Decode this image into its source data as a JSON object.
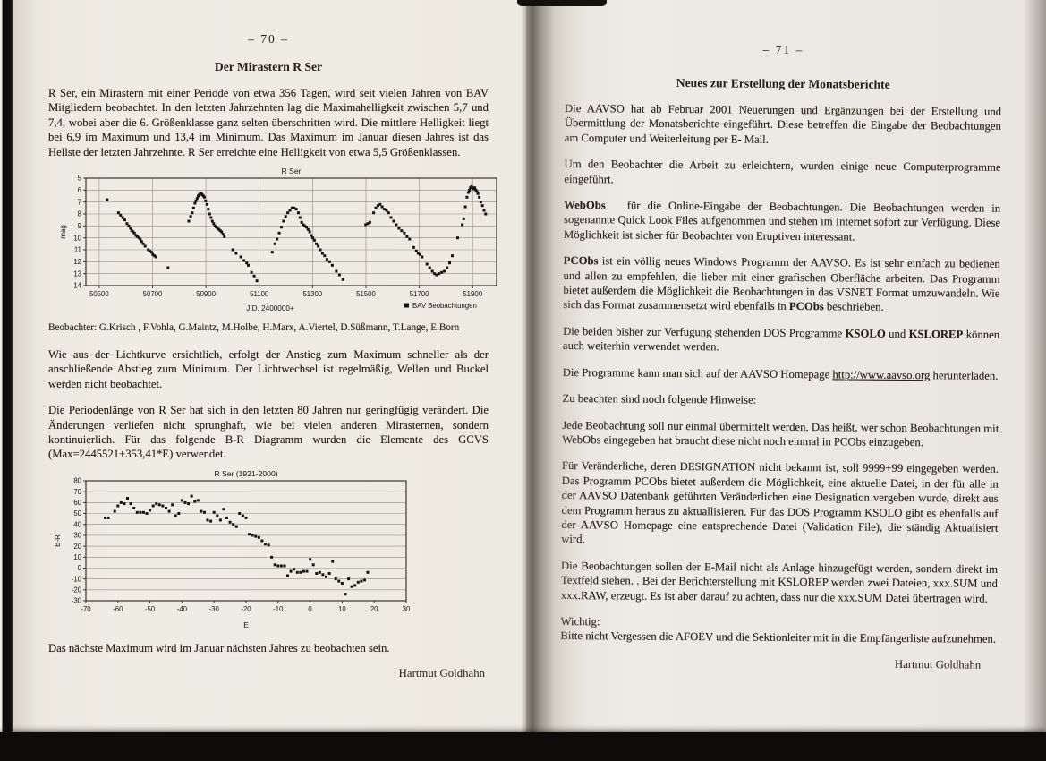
{
  "document": {
    "kind": "scanned book spread, German variable-star newsletter pages",
    "language": "de"
  },
  "page70": {
    "page_number": "–  70  –",
    "title": "Der Mirastern R Ser",
    "intro": "R Ser, ein Mirastern mit einer Periode von etwa 356 Tagen, wird seit vielen Jahren von BAV Mitgliedern beobachtet. In den letzten Jahrzehnten lag die Maximahelligkeit zwischen 5,7 und 7,4, wobei aber die 6. Größenklasse ganz selten überschritten wird. Die mittlere Helligkeit liegt bei 6,9 im Maximum und 13,4 im Minimum. Das Maximum im Januar diesen Jahres ist das Hellste der letzten Jahrzehnte. R Ser erreichte eine Helligkeit von etwa 5,5 Größenklassen.",
    "observers": "Beobachter: G.Krisch , F.Vohla, G.Maintz, M.Holbe, H.Marx, A.Viertel, D.Süßmann, T.Lange, E.Born",
    "para_lightcurve": "Wie aus der Lichtkurve ersichtlich, erfolgt der Anstieg zum Maximum schneller als der anschließende Abstieg zum Minimum. Der Lichtwechsel ist regelmäßig, Wellen und Buckel werden nicht beobachtet.",
    "para_period": "Die Periodenlänge von R Ser hat sich in den letzten 80 Jahren nur geringfügig verändert. Die Änderungen verliefen nicht sprunghaft, wie bei vielen anderen Mirasternen, sondern kontinuierlich. Für das folgende B-R Diagramm wurden die Elemente des GCVS (Max=2445521+353,41*E) verwendet.",
    "para_next_max": "Das nächste Maximum wird im Januar nächsten Jahres zu beobachten sein.",
    "signature": "Hartmut Goldhahn"
  },
  "page71": {
    "page_number": "–  71  –",
    "title": "Neues zur Erstellung der Monatsberichte",
    "paragraphs": [
      {
        "segments": [
          {
            "t": "Die AAVSO hat ab Februar 2001 Neuerungen und Ergänzungen bei der Erstellung und Übermittlung der Monatsberichte eingeführt. Diese betreffen die Eingabe der Beobachtungen am Computer und Weiterleitung per E- Mail."
          }
        ]
      },
      {
        "segments": [
          {
            "t": "Um den Beobachter die Arbeit zu erleichtern, wurden einige neue Computerprogramme eingeführt."
          }
        ]
      },
      {
        "segments": [
          {
            "t": "WebObs",
            "b": true
          },
          {
            "t": "   für die Online-Eingabe der Beobachtungen. Die Beobachtungen werden in sogenannte Quick Look Files aufgenommen und stehen im Internet sofort zur Verfügung. Diese Möglichkeit ist sicher für Beobachter von Eruptiven interessant."
          }
        ]
      },
      {
        "segments": [
          {
            "t": "PCObs",
            "b": true
          },
          {
            "t": " ist ein völlig neues Windows Programm der AAVSO. Es ist sehr einfach zu bedienen und allen zu empfehlen, die lieber mit einer grafischen Oberfläche arbeiten. Das Programm bietet außerdem die Möglichkeit die Beobachtungen in das VSNET Format umzuwandeln. Wie sich das Format zusammensetzt wird ebenfalls in "
          },
          {
            "t": "PCObs",
            "b": true
          },
          {
            "t": " beschrieben."
          }
        ]
      },
      {
        "segments": [
          {
            "t": "Die beiden bisher zur Verfügung stehenden DOS Programme "
          },
          {
            "t": "KSOLO",
            "b": true
          },
          {
            "t": " und "
          },
          {
            "t": "KSLOREP",
            "b": true
          },
          {
            "t": " können auch weiterhin verwendet werden."
          }
        ]
      },
      {
        "segments": [
          {
            "t": "Die Programme kann man sich auf der AAVSO Homepage "
          },
          {
            "t": "http://www.aavso.org",
            "u": true
          },
          {
            "t": " herunterladen."
          }
        ]
      },
      {
        "segments": [
          {
            "t": "Zu beachten sind noch folgende Hinweise:"
          }
        ]
      },
      {
        "segments": [
          {
            "t": "Jede Beobachtung soll nur einmal übermittelt werden. Das heißt, wer schon Beobachtungen mit WebObs eingegeben hat braucht diese nicht noch einmal in PCObs einzugeben."
          }
        ]
      },
      {
        "segments": [
          {
            "t": "Für Veränderliche, deren DESIGNATION nicht bekannt ist, soll 9999+99 eingegeben werden. Das Programm PCObs bietet außerdem die Möglichkeit, eine aktuelle Datei, in der für alle in der AAVSO Datenbank geführten Veränderlichen eine Designation vergeben wurde, direkt aus dem Programm heraus zu aktuallisieren. Für das DOS Programm KSOLO gibt es ebenfalls auf der AAVSO Homepage eine entsprechende Datei (Validation File), die ständig Aktualisiert wird."
          }
        ]
      },
      {
        "segments": [
          {
            "t": "Die Beobachtungen sollen der E-Mail nicht als Anlage hinzugefügt werden, sondern direkt im Textfeld stehen. . Bei der Berichterstellung mit KSLOREP werden zwei Dateien,  xxx.SUM und  xxx.RAW, erzeugt. Es ist aber darauf zu achten, dass nur die  xxx.SUM Datei übertragen wird."
          }
        ]
      },
      {
        "segments": [
          {
            "t": "Wichtig:"
          },
          {
            "br": true
          },
          {
            "t": "Bitte nicht Vergessen die AFOEV und die Sektionleiter mit in die Empfängerliste aufzunehmen."
          }
        ]
      }
    ],
    "signature": "Hartmut Goldhahn"
  },
  "chart_data": [
    {
      "type": "scatter",
      "title": "R Ser",
      "xlabel": "J.D. 2400000+",
      "ylabel": "mag",
      "legend": [
        "BAV Beobachtungen"
      ],
      "legend_position": "bottom-right",
      "xlim": [
        50450,
        51990
      ],
      "ylim": [
        5,
        14
      ],
      "y_inverted": true,
      "xticks": [
        50500,
        50700,
        50900,
        51100,
        51300,
        51500,
        51700,
        51900
      ],
      "yticks": [
        5,
        6,
        7,
        8,
        9,
        10,
        11,
        12,
        13,
        14
      ],
      "grid": {
        "vertical": true,
        "horizontal": true
      },
      "points": [
        [
          50530,
          6.8
        ],
        [
          50572,
          7.9
        ],
        [
          50580,
          8.1
        ],
        [
          50588,
          8.3
        ],
        [
          50596,
          8.5
        ],
        [
          50604,
          8.8
        ],
        [
          50611,
          9.0
        ],
        [
          50617,
          9.2
        ],
        [
          50622,
          9.4
        ],
        [
          50627,
          9.5
        ],
        [
          50632,
          9.6
        ],
        [
          50638,
          9.8
        ],
        [
          50643,
          9.9
        ],
        [
          50649,
          10.0
        ],
        [
          50654,
          10.1
        ],
        [
          50659,
          10.3
        ],
        [
          50665,
          10.5
        ],
        [
          50672,
          10.7
        ],
        [
          50684,
          11.0
        ],
        [
          50690,
          11.1
        ],
        [
          50696,
          11.2
        ],
        [
          50701,
          11.4
        ],
        [
          50707,
          11.5
        ],
        [
          50713,
          11.6
        ],
        [
          50758,
          12.5
        ],
        [
          50836,
          8.6
        ],
        [
          50843,
          8.2
        ],
        [
          50849,
          7.9
        ],
        [
          50854,
          7.5
        ],
        [
          50859,
          7.1
        ],
        [
          50863,
          6.9
        ],
        [
          50867,
          6.7
        ],
        [
          50871,
          6.5
        ],
        [
          50875,
          6.4
        ],
        [
          50879,
          6.3
        ],
        [
          50883,
          6.3
        ],
        [
          50887,
          6.4
        ],
        [
          50891,
          6.5
        ],
        [
          50895,
          6.6
        ],
        [
          50899,
          6.9
        ],
        [
          50904,
          7.2
        ],
        [
          50909,
          7.6
        ],
        [
          50914,
          8.0
        ],
        [
          50919,
          8.3
        ],
        [
          50924,
          8.6
        ],
        [
          50929,
          8.8
        ],
        [
          50934,
          9.0
        ],
        [
          50939,
          9.1
        ],
        [
          50944,
          9.2
        ],
        [
          50949,
          9.3
        ],
        [
          50954,
          9.4
        ],
        [
          50959,
          9.5
        ],
        [
          50964,
          9.7
        ],
        [
          50969,
          9.9
        ],
        [
          51001,
          11.0
        ],
        [
          51013,
          11.3
        ],
        [
          51031,
          11.6
        ],
        [
          51043,
          11.9
        ],
        [
          51053,
          12.1
        ],
        [
          51059,
          12.3
        ],
        [
          51071,
          12.9
        ],
        [
          51081,
          13.2
        ],
        [
          51091,
          13.6
        ],
        [
          51149,
          11.2
        ],
        [
          51159,
          10.5
        ],
        [
          51167,
          10.1
        ],
        [
          51175,
          9.6
        ],
        [
          51183,
          9.1
        ],
        [
          51191,
          8.6
        ],
        [
          51199,
          8.2
        ],
        [
          51207,
          7.9
        ],
        [
          51215,
          7.7
        ],
        [
          51223,
          7.5
        ],
        [
          51231,
          7.5
        ],
        [
          51239,
          7.6
        ],
        [
          51247,
          7.9
        ],
        [
          51253,
          8.3
        ],
        [
          51259,
          8.7
        ],
        [
          51265,
          8.9
        ],
        [
          51271,
          9.0
        ],
        [
          51277,
          9.1
        ],
        [
          51283,
          9.3
        ],
        [
          51289,
          9.5
        ],
        [
          51295,
          9.8
        ],
        [
          51301,
          10.0
        ],
        [
          51307,
          10.2
        ],
        [
          51314,
          10.5
        ],
        [
          51321,
          10.7
        ],
        [
          51329,
          11.0
        ],
        [
          51337,
          11.3
        ],
        [
          51345,
          11.5
        ],
        [
          51354,
          11.8
        ],
        [
          51364,
          12.0
        ],
        [
          51374,
          12.3
        ],
        [
          51389,
          12.8
        ],
        [
          51401,
          13.1
        ],
        [
          51414,
          13.5
        ],
        [
          51499,
          8.9
        ],
        [
          51507,
          8.8
        ],
        [
          51515,
          8.7
        ],
        [
          51529,
          7.9
        ],
        [
          51537,
          7.5
        ],
        [
          51545,
          7.3
        ],
        [
          51553,
          7.2
        ],
        [
          51561,
          7.4
        ],
        [
          51569,
          7.6
        ],
        [
          51577,
          7.7
        ],
        [
          51585,
          7.9
        ],
        [
          51594,
          8.3
        ],
        [
          51604,
          8.6
        ],
        [
          51614,
          8.9
        ],
        [
          51624,
          9.2
        ],
        [
          51634,
          9.4
        ],
        [
          51644,
          9.6
        ],
        [
          51654,
          9.9
        ],
        [
          51664,
          10.1
        ],
        [
          51679,
          10.8
        ],
        [
          51689,
          11.1
        ],
        [
          51696,
          11.3
        ],
        [
          51703,
          11.4
        ],
        [
          51711,
          11.6
        ],
        [
          51729,
          12.2
        ],
        [
          51739,
          12.5
        ],
        [
          51749,
          12.8
        ],
        [
          51757,
          13.0
        ],
        [
          51765,
          13.1
        ],
        [
          51774,
          13.0
        ],
        [
          51784,
          12.9
        ],
        [
          51794,
          12.8
        ],
        [
          51804,
          12.5
        ],
        [
          51814,
          12.1
        ],
        [
          51824,
          11.5
        ],
        [
          51844,
          10.0
        ],
        [
          51861,
          8.9
        ],
        [
          51867,
          8.4
        ],
        [
          51873,
          7.4
        ],
        [
          51879,
          6.6
        ],
        [
          51884,
          6.2
        ],
        [
          51888,
          6.0
        ],
        [
          51892,
          5.8
        ],
        [
          51896,
          5.7
        ],
        [
          51900,
          5.8
        ],
        [
          51904,
          5.9
        ],
        [
          51908,
          5.8
        ],
        [
          51912,
          6.0
        ],
        [
          51916,
          6.1
        ],
        [
          51920,
          6.3
        ],
        [
          51925,
          6.6
        ],
        [
          51931,
          7.0
        ],
        [
          51937,
          7.3
        ],
        [
          51943,
          7.7
        ],
        [
          51949,
          8.0
        ]
      ]
    },
    {
      "type": "scatter",
      "title": "R Ser (1921-2000)",
      "xlabel": "E",
      "ylabel": "B-R",
      "xlim": [
        -70,
        30
      ],
      "ylim": [
        -30,
        80
      ],
      "y_inverted": false,
      "xticks": [
        -70,
        -60,
        -50,
        -40,
        -30,
        -20,
        -10,
        0,
        10,
        20,
        30
      ],
      "yticks": [
        -30,
        -20,
        -10,
        0,
        10,
        20,
        30,
        40,
        50,
        60,
        70,
        80
      ],
      "grid": {
        "vertical": false,
        "horizontal": true
      },
      "points": [
        [
          -64,
          46
        ],
        [
          -63,
          46
        ],
        [
          -61,
          52
        ],
        [
          -60,
          57
        ],
        [
          -59,
          60
        ],
        [
          -58,
          59
        ],
        [
          -57,
          64
        ],
        [
          -56,
          59
        ],
        [
          -55,
          55
        ],
        [
          -54,
          51
        ],
        [
          -53,
          51
        ],
        [
          -52,
          51
        ],
        [
          -51,
          50
        ],
        [
          -50,
          53
        ],
        [
          -49,
          57
        ],
        [
          -48,
          59
        ],
        [
          -47,
          58
        ],
        [
          -46,
          57
        ],
        [
          -45,
          55
        ],
        [
          -44,
          52
        ],
        [
          -43,
          58
        ],
        [
          -42,
          48
        ],
        [
          -41,
          50
        ],
        [
          -40,
          62
        ],
        [
          -39,
          60
        ],
        [
          -38,
          59
        ],
        [
          -37,
          66
        ],
        [
          -36,
          61
        ],
        [
          -35,
          62
        ],
        [
          -34,
          52
        ],
        [
          -33,
          51
        ],
        [
          -32,
          44
        ],
        [
          -31,
          43
        ],
        [
          -30,
          51
        ],
        [
          -29,
          48
        ],
        [
          -28,
          44
        ],
        [
          -27,
          54
        ],
        [
          -26,
          46
        ],
        [
          -25,
          42
        ],
        [
          -24,
          40
        ],
        [
          -23,
          38
        ],
        [
          -22,
          50
        ],
        [
          -21,
          48
        ],
        [
          -20,
          46
        ],
        [
          -19,
          31
        ],
        [
          -18,
          30
        ],
        [
          -17,
          29
        ],
        [
          -16,
          28
        ],
        [
          -15,
          25
        ],
        [
          -14,
          22
        ],
        [
          -13,
          21
        ],
        [
          -12,
          10
        ],
        [
          -11,
          3
        ],
        [
          -10,
          2
        ],
        [
          -9,
          2
        ],
        [
          -8,
          2
        ],
        [
          -7,
          -7
        ],
        [
          -6,
          -3
        ],
        [
          -5,
          -1
        ],
        [
          -4,
          -4
        ],
        [
          -3,
          -4
        ],
        [
          -2,
          -3
        ],
        [
          -1,
          -3
        ],
        [
          0,
          8
        ],
        [
          1,
          3
        ],
        [
          2,
          -5
        ],
        [
          3,
          -4
        ],
        [
          4,
          -6
        ],
        [
          5,
          -8
        ],
        [
          6,
          -5
        ],
        [
          7,
          6
        ],
        [
          8,
          -10
        ],
        [
          9,
          -12
        ],
        [
          10,
          -14
        ],
        [
          11,
          -24
        ],
        [
          12,
          -10
        ],
        [
          13,
          -17
        ],
        [
          14,
          -16
        ],
        [
          15,
          -13
        ],
        [
          16,
          -12
        ],
        [
          17,
          -11
        ],
        [
          18,
          -4
        ]
      ]
    }
  ],
  "colors": {
    "paper": "#edeae2",
    "ink": "#211c14",
    "scan_edge": "#0d0c0a",
    "fold_shadow": "#4a453b"
  }
}
